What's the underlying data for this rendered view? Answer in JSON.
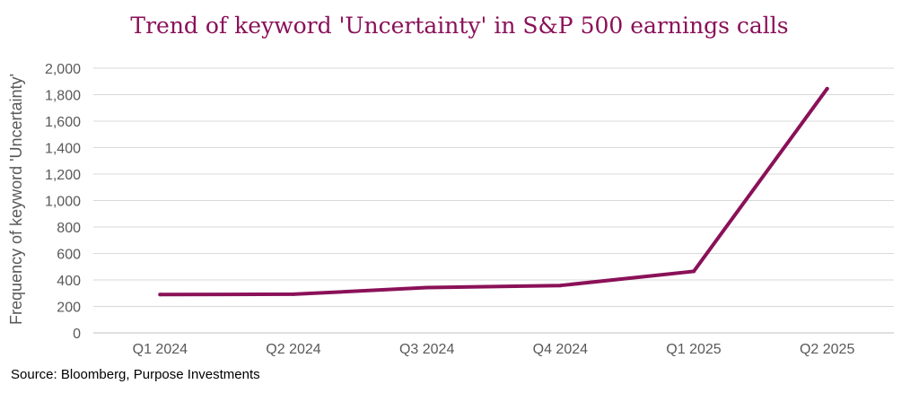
{
  "chart_data": {
    "type": "line",
    "title": "Trend of keyword 'Uncertainty' in S&P 500 earnings calls",
    "xlabel": "",
    "ylabel": "Frequency of keyword 'Uncertainty'",
    "categories": [
      "Q1 2024",
      "Q2 2024",
      "Q3 2024",
      "Q4 2024",
      "Q1 2025",
      "Q2 2025"
    ],
    "series": [
      {
        "name": "Uncertainty",
        "values": [
          290,
          292,
          342,
          358,
          465,
          1845
        ]
      }
    ],
    "ylim": [
      0,
      2000
    ],
    "yticks": [
      0,
      200,
      400,
      600,
      800,
      1000,
      1200,
      1400,
      1600,
      1800,
      2000
    ],
    "ytick_labels": [
      "0",
      "200",
      "400",
      "600",
      "800",
      "1,000",
      "1,200",
      "1,400",
      "1,600",
      "1,800",
      "2,000"
    ],
    "grid": true,
    "line_color": "#8a1158",
    "source": "Source: Bloomberg, Purpose Investments"
  }
}
